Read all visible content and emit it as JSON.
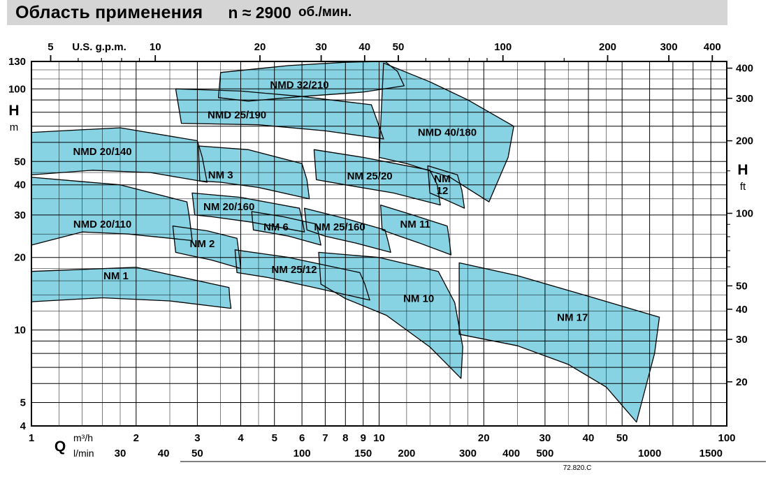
{
  "title": {
    "main": "Область применения",
    "speed": "n ≈ 2900",
    "unit": "об./мин."
  },
  "footer": {
    "code": "72.820.C"
  },
  "chart_data": {
    "type": "area",
    "description": "Pump application range chart (head H vs flow Q, log-log scales) at n ≈ 2900 rpm",
    "x_axis": {
      "label": "Q",
      "units": {
        "primary": "m³/h",
        "secondary": "l/min",
        "top": "U.S. g.p.m."
      },
      "range_m3h": [
        1,
        100
      ],
      "ticks_m3h": [
        1,
        2,
        3,
        4,
        5,
        6,
        7,
        8,
        9,
        10,
        20,
        30,
        40,
        50,
        100
      ],
      "ticks_lmin": [
        30,
        40,
        50,
        100,
        150,
        200,
        300,
        400,
        500,
        1000,
        1500
      ],
      "ticks_usgpm": [
        5,
        10,
        20,
        30,
        40,
        50,
        100,
        200,
        300,
        400
      ],
      "minor_usgpm": [
        6,
        7,
        8,
        9,
        60,
        70,
        80,
        90,
        150
      ]
    },
    "y_axis": {
      "label": "H",
      "units": {
        "left": "m",
        "right": "ft"
      },
      "range_m": [
        4,
        130
      ],
      "ticks_m": [
        130,
        100,
        50,
        40,
        30,
        20,
        10,
        5,
        4
      ],
      "ticks_ft": [
        400,
        300,
        200,
        100,
        50,
        40,
        30,
        20
      ],
      "minor_ft": [
        150,
        90,
        80,
        70,
        60
      ]
    },
    "grid": {
      "x_major": [
        1,
        2,
        3,
        4,
        5,
        6,
        7,
        8,
        9,
        10,
        20,
        30,
        40,
        50,
        60,
        70,
        80,
        90,
        100
      ],
      "x_minor": [
        1.2,
        1.4,
        1.6,
        1.8,
        2.5,
        3.5,
        4.5,
        12,
        14,
        16,
        18,
        25,
        35,
        45
      ],
      "y_major": [
        4,
        5,
        6,
        7,
        8,
        9,
        10,
        20,
        30,
        40,
        50,
        60,
        70,
        80,
        90,
        100
      ],
      "y_minor": [
        12,
        14,
        16,
        18,
        25,
        35,
        45,
        110,
        120
      ]
    },
    "style": {
      "region_fill": "#87d3e3",
      "region_stroke": "#000000",
      "grid_color": "#000000",
      "titlebar_bg": "#d5d5d5"
    },
    "regions": [
      {
        "name": "NMD 32/210",
        "label_at": [
          5.9,
          104
        ],
        "points": [
          [
            3.5,
            117
          ],
          [
            5.5,
            125
          ],
          [
            8,
            129
          ],
          [
            10.4,
            130
          ],
          [
            11.3,
            118
          ],
          [
            11.8,
            103
          ],
          [
            9,
            97
          ],
          [
            6,
            93
          ],
          [
            4.2,
            89
          ],
          [
            3.45,
            92
          ]
        ]
      },
      {
        "name": "NMD 40/180",
        "label_at": [
          15.7,
          66
        ],
        "points": [
          [
            10.3,
            128
          ],
          [
            14,
            107
          ],
          [
            18,
            90
          ],
          [
            24.4,
            70
          ],
          [
            23.5,
            52
          ],
          [
            20.7,
            34
          ],
          [
            16,
            43
          ],
          [
            12,
            49
          ],
          [
            10,
            52
          ]
        ]
      },
      {
        "name": "NMD 25/190",
        "label_at": [
          3.9,
          78
        ],
        "points": [
          [
            2.6,
            100
          ],
          [
            4,
            98
          ],
          [
            6,
            93
          ],
          [
            9.5,
            86
          ],
          [
            9.9,
            73
          ],
          [
            10.3,
            62
          ],
          [
            7,
            67
          ],
          [
            4.5,
            71
          ],
          [
            2.7,
            72
          ]
        ]
      },
      {
        "name": "NMD 20/140",
        "label_at": [
          1.6,
          55
        ],
        "points": [
          [
            1,
            66
          ],
          [
            1.8,
            69
          ],
          [
            3,
            61
          ],
          [
            3.1,
            52
          ],
          [
            3.2,
            41
          ],
          [
            2.2,
            45
          ],
          [
            1.5,
            46
          ],
          [
            1,
            44
          ]
        ]
      },
      {
        "name": "NM 25/20",
        "label_at": [
          9.4,
          43.5
        ],
        "points": [
          [
            6.5,
            56
          ],
          [
            9,
            52
          ],
          [
            14,
            46
          ],
          [
            14.7,
            40
          ],
          [
            15,
            33
          ],
          [
            11,
            37
          ],
          [
            8,
            40
          ],
          [
            6.6,
            42
          ]
        ]
      },
      {
        "name": "NM 12",
        "label_at": [
          15.2,
          40
        ],
        "label_lines": [
          "NM",
          "12"
        ],
        "points": [
          [
            13.8,
            48
          ],
          [
            16.8,
            44
          ],
          [
            17.3,
            38
          ],
          [
            17.6,
            32
          ],
          [
            15,
            35.5
          ],
          [
            14,
            37
          ]
        ]
      },
      {
        "name": "NM 3",
        "label_at": [
          3.5,
          44
        ],
        "points": [
          [
            3.02,
            58
          ],
          [
            4.2,
            56
          ],
          [
            6,
            49
          ],
          [
            6.2,
            42
          ],
          [
            6.3,
            35
          ],
          [
            4.5,
            39
          ],
          [
            3.5,
            41
          ],
          [
            3.05,
            41.5
          ]
        ]
      },
      {
        "name": "NM 20/160",
        "label_at": [
          3.7,
          32.5
        ],
        "points": [
          [
            2.9,
            37
          ],
          [
            4,
            35.5
          ],
          [
            5.9,
            32
          ],
          [
            6,
            29
          ],
          [
            6.1,
            25.5
          ],
          [
            4.3,
            28
          ],
          [
            3.3,
            29.5
          ],
          [
            2.95,
            30
          ]
        ]
      },
      {
        "name": "NM 11",
        "label_at": [
          12.7,
          27.5
        ],
        "points": [
          [
            10.1,
            33
          ],
          [
            12.5,
            30
          ],
          [
            15.7,
            27
          ],
          [
            15.9,
            24
          ],
          [
            16.1,
            20.5
          ],
          [
            13,
            23
          ],
          [
            11,
            25
          ],
          [
            10.2,
            26
          ]
        ]
      },
      {
        "name": "NMD 20/110",
        "label_at": [
          1.6,
          27.5
        ],
        "points": [
          [
            1,
            43
          ],
          [
            1.8,
            40
          ],
          [
            2.8,
            34
          ],
          [
            2.85,
            29
          ],
          [
            2.9,
            23.5
          ],
          [
            1.9,
            25
          ],
          [
            1.4,
            25.5
          ],
          [
            1,
            22.5
          ]
        ]
      },
      {
        "name": "NM 6",
        "label_at": [
          5.05,
          26.8
        ],
        "points": [
          [
            4.3,
            31
          ],
          [
            5.3,
            29.5
          ],
          [
            6.6,
            27.5
          ],
          [
            6.7,
            25
          ],
          [
            6.8,
            22.5
          ],
          [
            5.5,
            24.5
          ],
          [
            4.7,
            25.5
          ],
          [
            4.35,
            26
          ]
        ]
      },
      {
        "name": "NM 25/160",
        "label_at": [
          7.7,
          26.8
        ],
        "points": [
          [
            6.1,
            32
          ],
          [
            8,
            29
          ],
          [
            10.4,
            26
          ],
          [
            10.6,
            23.5
          ],
          [
            10.8,
            21
          ],
          [
            8.5,
            23
          ],
          [
            7,
            24.5
          ],
          [
            6.2,
            26
          ]
        ]
      },
      {
        "name": "NM 2",
        "label_at": [
          3.1,
          22.8
        ],
        "points": [
          [
            2.55,
            27
          ],
          [
            3.2,
            25.8
          ],
          [
            3.9,
            24
          ],
          [
            3.95,
            21
          ],
          [
            4,
            18
          ],
          [
            3.3,
            19.5
          ],
          [
            2.8,
            20.5
          ],
          [
            2.6,
            21
          ]
        ]
      },
      {
        "name": "NM 25/12",
        "label_at": [
          5.7,
          17.8
        ],
        "points": [
          [
            3.85,
            21.5
          ],
          [
            5.5,
            20
          ],
          [
            8.8,
            17.3
          ],
          [
            9.1,
            15.5
          ],
          [
            9.4,
            13.3
          ],
          [
            6.5,
            15
          ],
          [
            4.8,
            16.5
          ],
          [
            3.9,
            17.3
          ]
        ]
      },
      {
        "name": "NM 1",
        "label_at": [
          1.75,
          16.8
        ],
        "points": [
          [
            1,
            17.5
          ],
          [
            2,
            18.2
          ],
          [
            3.7,
            15
          ],
          [
            3.72,
            13.5
          ],
          [
            3.75,
            12.3
          ],
          [
            2.5,
            13.2
          ],
          [
            1.6,
            13.6
          ],
          [
            1,
            13.1
          ]
        ]
      },
      {
        "name": "NM 17",
        "label_at": [
          36,
          11.3
        ],
        "points": [
          [
            17,
            19
          ],
          [
            25,
            16.8
          ],
          [
            40,
            13.8
          ],
          [
            64,
            11.3
          ],
          [
            62,
            8
          ],
          [
            55,
            4.15
          ],
          [
            45,
            5.8
          ],
          [
            35,
            7.2
          ],
          [
            25,
            8.6
          ],
          [
            17,
            9.6
          ]
        ]
      },
      {
        "name": "NM 10",
        "label_at": [
          13,
          13.5
        ],
        "points": [
          [
            6.7,
            21
          ],
          [
            10,
            20
          ],
          [
            14.8,
            17.5
          ],
          [
            16.5,
            13
          ],
          [
            17.4,
            8.5
          ],
          [
            17.2,
            6.3
          ],
          [
            14,
            8.5
          ],
          [
            10.5,
            11.5
          ],
          [
            8,
            13.5
          ],
          [
            6.8,
            15.5
          ]
        ]
      }
    ]
  }
}
